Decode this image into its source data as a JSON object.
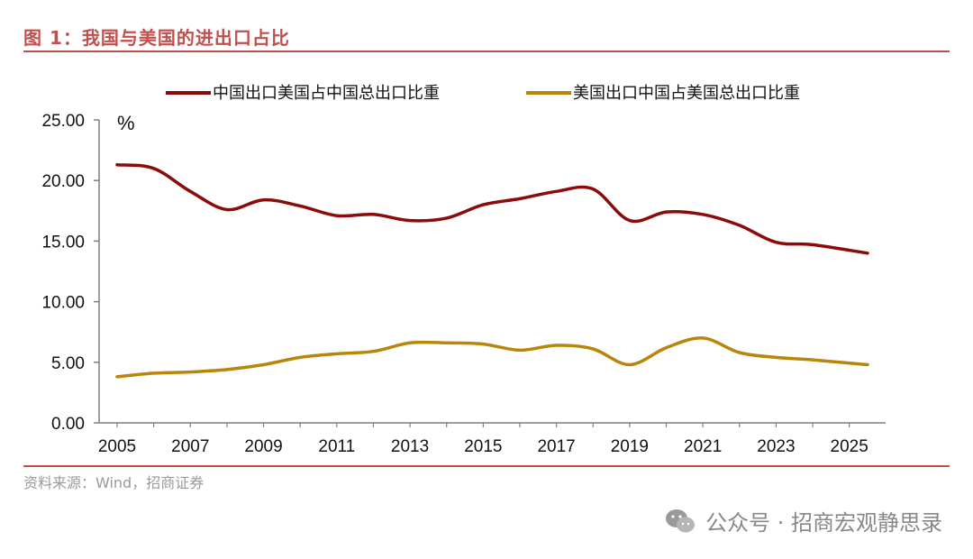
{
  "header": {
    "figure_title": "图 1：我国与美国的进出口占比"
  },
  "footer": {
    "source": "资料来源：Wind，招商证券"
  },
  "watermark": {
    "text": "公众号 · 招商宏观静思录",
    "icon": "wechat-icon"
  },
  "colors": {
    "accent": "#C0504D",
    "series1": "#8B0A0A",
    "series2": "#B8860B"
  },
  "chart_data": {
    "type": "line",
    "title": "我国与美国的进出口占比",
    "ylabel": "%",
    "xlabel": "",
    "ylim": [
      0,
      25
    ],
    "yticks": [
      "0.00",
      "5.00",
      "10.00",
      "15.00",
      "20.00",
      "25.00"
    ],
    "xticks": [
      "2005",
      "2007",
      "2009",
      "2011",
      "2013",
      "2015",
      "2017",
      "2019",
      "2021",
      "2023",
      "2025"
    ],
    "xlim": [
      2005,
      2025.5
    ],
    "x": [
      2005,
      2006,
      2007,
      2008,
      2009,
      2010,
      2011,
      2012,
      2013,
      2014,
      2015,
      2016,
      2017,
      2018,
      2019,
      2020,
      2021,
      2022,
      2023,
      2024,
      2025.5
    ],
    "series": [
      {
        "name": "中国出口美国占中国总出口比重",
        "color": "#8B0A0A",
        "values": [
          21.3,
          21.0,
          19.1,
          17.6,
          18.4,
          17.9,
          17.1,
          17.2,
          16.7,
          16.9,
          18.0,
          18.5,
          19.1,
          19.3,
          16.7,
          17.4,
          17.2,
          16.3,
          14.9,
          14.7,
          14.0
        ]
      },
      {
        "name": "美国出口中国占美国总出口比重",
        "color": "#B8860B",
        "values": [
          3.8,
          4.1,
          4.2,
          4.4,
          4.8,
          5.4,
          5.7,
          5.9,
          6.6,
          6.6,
          6.5,
          6.0,
          6.4,
          6.1,
          4.8,
          6.2,
          7.0,
          5.8,
          5.4,
          5.2,
          4.8
        ]
      }
    ],
    "legend_position": "top"
  }
}
